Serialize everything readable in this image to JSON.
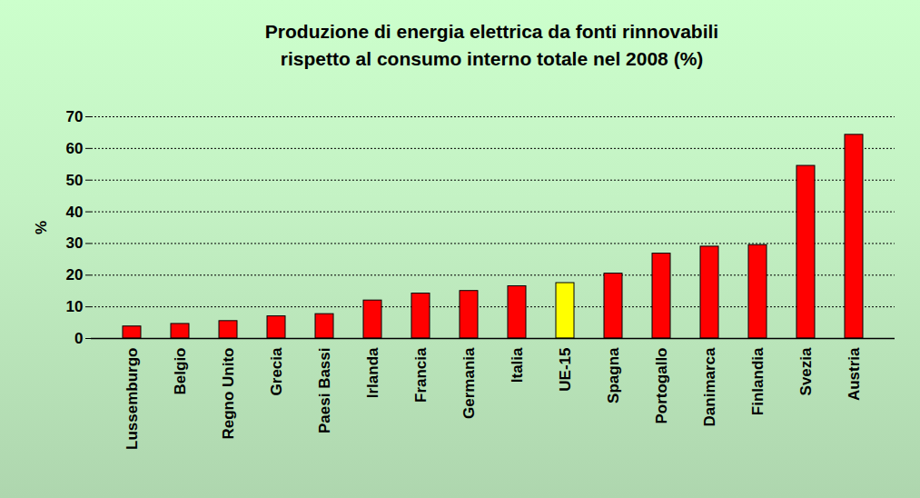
{
  "chart_data": {
    "type": "bar",
    "title": "Produzione di energia elettrica da fonti rinnovabili\nrispetto al consumo interno totale nel 2008 (%)",
    "ylabel": "%",
    "categories": [
      "Lussemburgo",
      "Belgio",
      "Regno Unito",
      "Grecia",
      "Paesi Bassi",
      "Irlanda",
      "Francia",
      "Germania",
      "Italia",
      "UE-15",
      "Spagna",
      "Portogallo",
      "Danimarca",
      "Finlandia",
      "Svezia",
      "Austria"
    ],
    "values": [
      3.8,
      4.6,
      5.5,
      7.0,
      7.7,
      12.0,
      14.2,
      15.0,
      16.5,
      17.5,
      20.5,
      26.8,
      29.0,
      29.5,
      54.5,
      64.3
    ],
    "colors": [
      "#ff0000",
      "#ff0000",
      "#ff0000",
      "#ff0000",
      "#ff0000",
      "#ff0000",
      "#ff0000",
      "#ff0000",
      "#ff0000",
      "#ffff00",
      "#ff0000",
      "#ff0000",
      "#ff0000",
      "#ff0000",
      "#ff0000",
      "#ff0000"
    ],
    "ylim": [
      0,
      70
    ],
    "yticks": [
      0,
      10,
      20,
      30,
      40,
      50,
      60,
      70
    ],
    "grid": true
  }
}
